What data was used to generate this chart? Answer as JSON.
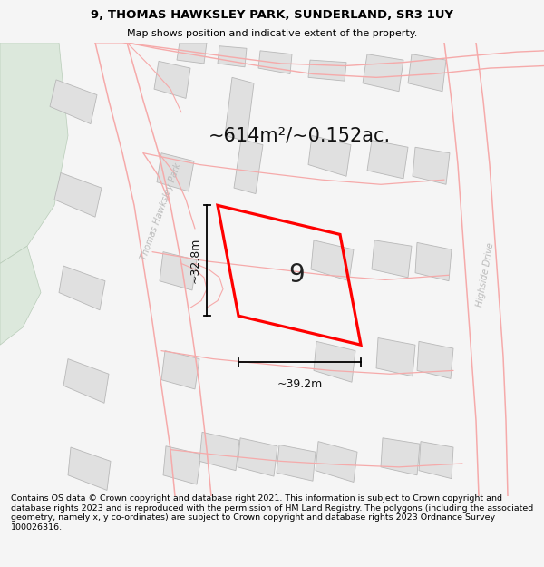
{
  "title_line1": "9, THOMAS HAWKSLEY PARK, SUNDERLAND, SR3 1UY",
  "title_line2": "Map shows position and indicative extent of the property.",
  "footer_text": "Contains OS data © Crown copyright and database right 2021. This information is subject to Crown copyright and database rights 2023 and is reproduced with the permission of HM Land Registry. The polygons (including the associated geometry, namely x, y co-ordinates) are subject to Crown copyright and database rights 2023 Ordnance Survey 100026316.",
  "area_label": "~614m²/~0.152ac.",
  "plot_number": "9",
  "dim_width": "~39.2m",
  "dim_height": "~32.8m",
  "road_label_1": "Thomas Hawksley Park",
  "road_label_2": "Highside Drive",
  "bg_color": "#f5f5f5",
  "map_bg": "#ffffff",
  "plot_color": "#ff0000",
  "building_fill": "#e0e0e0",
  "building_edge": "#b8b8b8",
  "road_line_color": "#f5aaaa",
  "green_area_color": "#dce8dc",
  "title_fontsize": 9.5,
  "footer_fontsize": 7.0
}
